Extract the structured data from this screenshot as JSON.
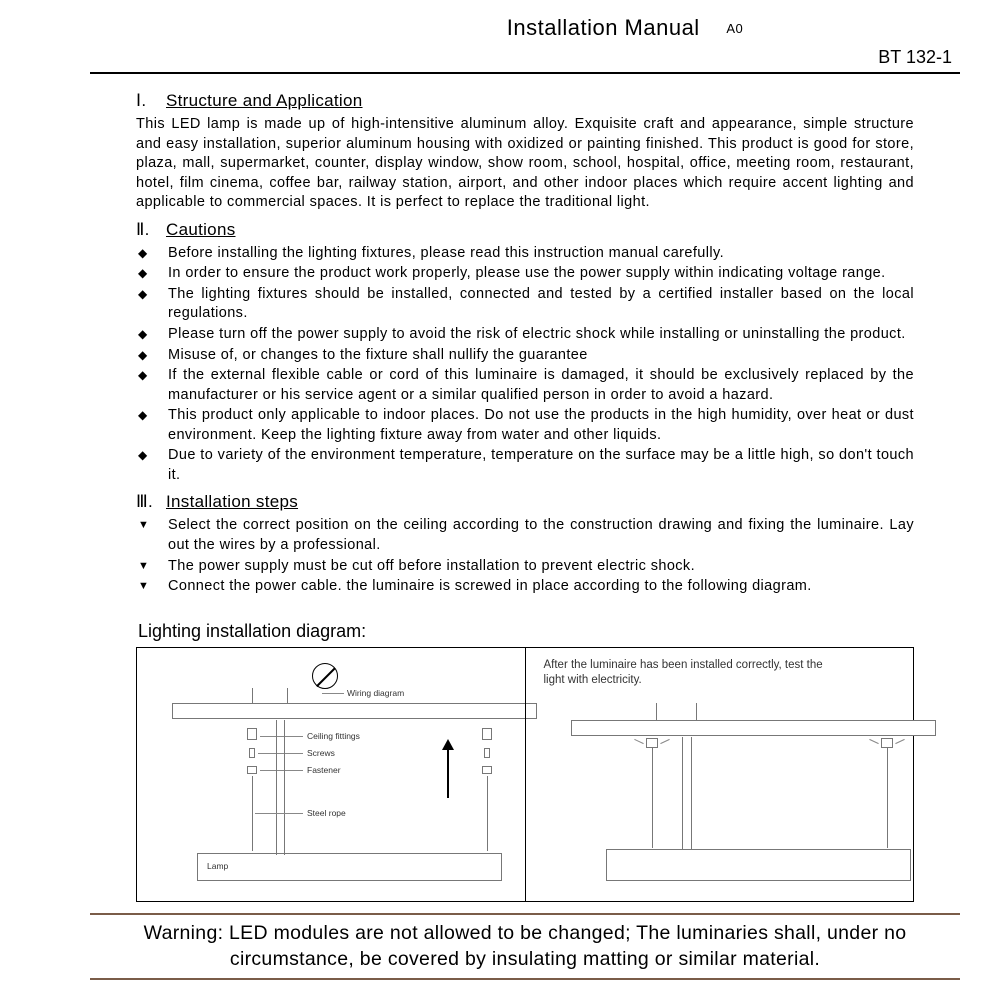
{
  "header": {
    "title": "Installation Manual",
    "revision": "A0",
    "model": "BT 132-1"
  },
  "section1": {
    "roman": "Ⅰ.",
    "heading": "Structure and Application",
    "body": "This LED lamp is made up of high-intensitive aluminum alloy. Exquisite craft and appearance, simple structure and easy installation, superior aluminum housing with oxidized or painting finished. This product is good for store, plaza, mall, supermarket, counter, display window, show room, school, hospital, office, meeting room, restaurant, hotel, film cinema, coffee bar, railway station, airport, and other indoor places which require accent lighting and applicable to commercial spaces. It is perfect to replace the traditional light."
  },
  "section2": {
    "roman": "Ⅱ.",
    "heading": "Cautions",
    "items": [
      "Before installing the lighting fixtures, please read this instruction manual carefully.",
      "In order to ensure the product work properly, please use the power supply within indicating voltage range.",
      "The lighting fixtures should be installed, connected and tested by a certified installer based on the local regulations.",
      "Please turn off the power supply to avoid the risk of electric shock while installing or uninstalling the product.",
      "Misuse of, or changes to the fixture shall nullify the guarantee",
      "If the external flexible cable or cord of this luminaire is damaged, it should be exclusively replaced by the manufacturer or his service agent or a similar qualified person in order to avoid a hazard.",
      "This product only applicable to indoor places. Do not use the products in the high humidity, over heat or dust environment. Keep the lighting fixture away from water and other liquids.",
      "Due to variety of the environment temperature, temperature on the surface may be a little high, so don't touch it."
    ]
  },
  "section3": {
    "roman": "Ⅲ.",
    "heading": "Installation steps",
    "items": [
      "Select the correct position on the ceiling according to the construction drawing and  fixing the luminaire. Lay out the wires by a professional.",
      "The power supply must be cut off before installation to prevent electric shock.",
      "Connect the power cable.  the luminaire is screwed in place according to the following diagram."
    ]
  },
  "diagram": {
    "title": "Lighting installation diagram:",
    "labels": {
      "wiring": "Wiring diagram",
      "ceiling_fittings": "Ceiling fittings",
      "screws": "Screws",
      "fastener": "Fastener",
      "steel_rope": "Steel rope",
      "lamp": "Lamp"
    },
    "right_caption": "After the luminaire has been installed correctly, test the light with electricity."
  },
  "warning": "Warning: LED modules are not allowed to be changed; The luminaries shall, under no circumstance, be covered by insulating matting or similar material.",
  "colors": {
    "rule": "#000000",
    "warn_rule": "#7a5c48",
    "diagram_line": "#777777"
  }
}
